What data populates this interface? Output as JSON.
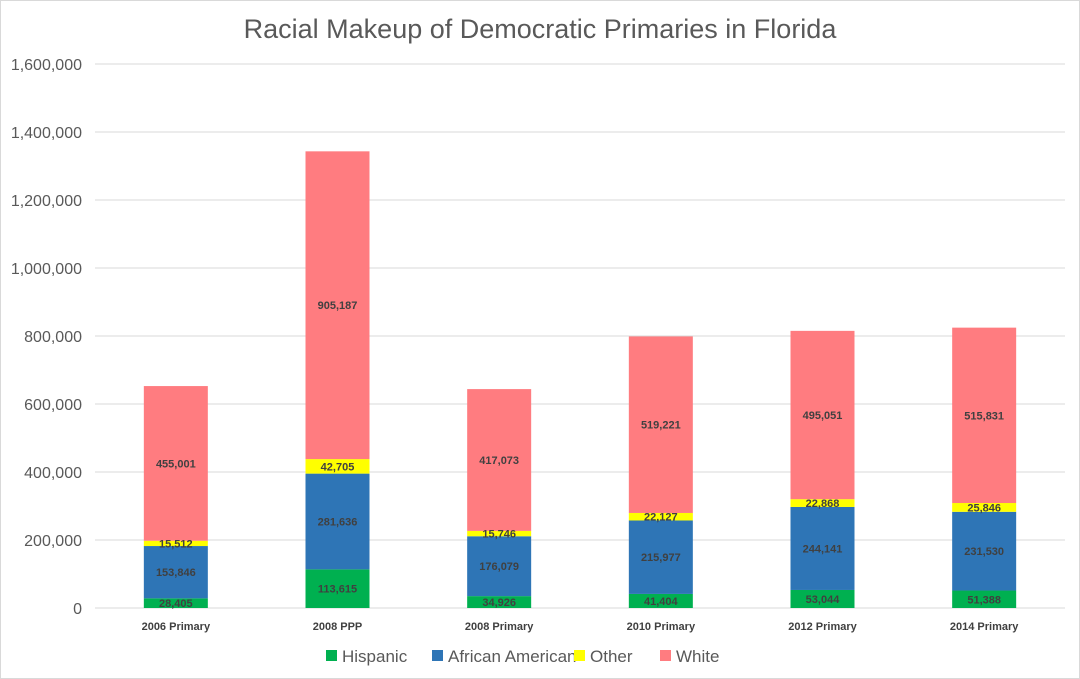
{
  "chart_data": {
    "type": "bar",
    "stacked": true,
    "title": "Racial Makeup of Democratic Primaries in Florida",
    "xlabel": "",
    "ylabel": "",
    "ylim": [
      0,
      1600000
    ],
    "yticks": [
      "0",
      "200,000",
      "400,000",
      "600,000",
      "800,000",
      "1,000,000",
      "1,200,000",
      "1,400,000",
      "1,600,000"
    ],
    "grid": true,
    "legend_position": "bottom",
    "categories": [
      "2006 Primary",
      "2008 PPP",
      "2008 Primary",
      "2010 Primary",
      "2012 Primary",
      "2014 Primary"
    ],
    "series": [
      {
        "name": "Hispanic",
        "color": "#00b050",
        "values": [
          28405,
          113615,
          34926,
          41404,
          53044,
          51388
        ],
        "labels": [
          "28,405",
          "113,615",
          "34,926",
          "41,404",
          "53,044",
          "51,388"
        ]
      },
      {
        "name": "African American",
        "color": "#2e75b6",
        "values": [
          153846,
          281636,
          176079,
          215977,
          244141,
          231530
        ],
        "labels": [
          "153,846",
          "281,636",
          "176,079",
          "215,977",
          "244,141",
          "231,530"
        ]
      },
      {
        "name": "Other",
        "color": "#ffff00",
        "values": [
          15512,
          42705,
          15746,
          22127,
          22868,
          25846
        ],
        "labels": [
          "15,512",
          "42,705",
          "15,746",
          "22,127",
          "22,868",
          "25,846"
        ]
      },
      {
        "name": "White",
        "color": "#ff7c80",
        "values": [
          455001,
          905187,
          417073,
          519221,
          495051,
          515831
        ],
        "labels": [
          "455,001",
          "905,187",
          "417,073",
          "519,221",
          "495,051",
          "515,831"
        ]
      }
    ]
  }
}
